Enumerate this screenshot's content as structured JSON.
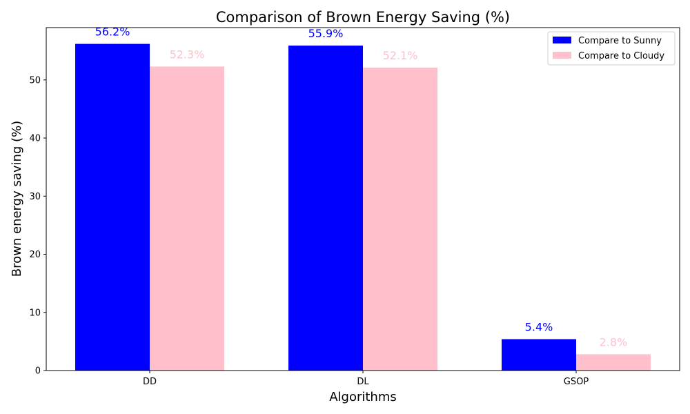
{
  "chart_data": {
    "type": "bar",
    "title": "Comparison of Brown Energy Saving (%)",
    "xlabel": "Algorithms",
    "ylabel": "Brown energy saving (%)",
    "categories": [
      "DD",
      "DL",
      "GSOP"
    ],
    "series": [
      {
        "name": "Compare to Sunny",
        "color": "#0000ff",
        "values": [
          56.2,
          55.9,
          5.4
        ],
        "labels": [
          "56.2%",
          "55.9%",
          "5.4%"
        ]
      },
      {
        "name": "Compare to Cloudy",
        "color": "#ffc0cb",
        "values": [
          52.3,
          52.1,
          2.8
        ],
        "labels": [
          "52.3%",
          "52.1%",
          "2.8%"
        ]
      }
    ],
    "ylim": [
      0,
      59.0
    ],
    "yticks": [
      0,
      10,
      20,
      30,
      40,
      50
    ],
    "grid": false,
    "legend_position": "top-right"
  }
}
